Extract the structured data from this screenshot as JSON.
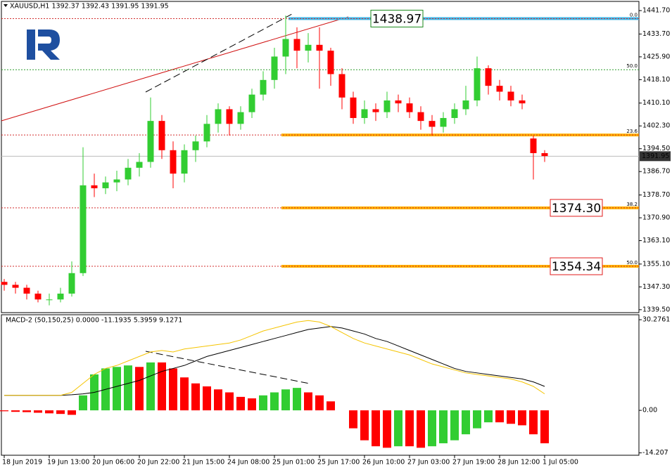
{
  "chart_data": [
    {
      "type": "candlestick",
      "title": "XAUUSD,H1  1392.37 1392.43 1391.95 1391.95",
      "categories": [
        "18 Jun 2019",
        null,
        null,
        null,
        "19 Jun 13:00",
        null,
        null,
        null,
        "20 Jun 06:00",
        null,
        null,
        null,
        "20 Jun 22:00",
        null,
        null,
        null,
        "21 Jun 15:00",
        null,
        null,
        null,
        "24 Jun 08:00",
        null,
        null,
        null,
        "25 Jun 01:00",
        null,
        null,
        null,
        "25 Jun 17:00",
        null,
        null,
        null,
        "26 Jun 10:00",
        null,
        null,
        null,
        "27 Jun 03:00",
        null,
        null,
        null,
        "27 Jun 19:00",
        null,
        null,
        null,
        "28 Jun 12:00",
        null,
        null,
        null,
        "1 Jul 05:00"
      ],
      "open": [
        1349,
        1348,
        1347,
        1345,
        1343,
        1343,
        1345,
        1352,
        1382,
        1381,
        1383,
        1384,
        1388,
        1390,
        1404,
        1394,
        1386,
        1394,
        1397,
        1403,
        1408,
        1403,
        1407,
        1413,
        1418,
        1426,
        1432,
        1428,
        1430,
        1428,
        1420,
        1412,
        1405,
        1408,
        1407,
        1411,
        1410,
        1407,
        1404,
        1402,
        1405,
        1408,
        1411,
        1422,
        1416,
        1414,
        1411,
        1398,
        1393
      ],
      "high": [
        1350,
        1349,
        1348,
        1346,
        1345,
        1347,
        1356,
        1395,
        1386,
        1385,
        1387,
        1391,
        1393,
        1412,
        1406,
        1397,
        1396,
        1399,
        1406,
        1410,
        1409,
        1409,
        1415,
        1421,
        1429,
        1440,
        1436,
        1434,
        1436,
        1429,
        1422,
        1414,
        1411,
        1410,
        1414,
        1413,
        1412,
        1409,
        1406,
        1407,
        1410,
        1416,
        1426,
        1423,
        1418,
        1416,
        1413,
        1399,
        1394
      ],
      "low": [
        1346,
        1345,
        1343,
        1342,
        1341,
        1342,
        1344,
        1351,
        1378,
        1379,
        1380,
        1382,
        1385,
        1388,
        1391,
        1381,
        1383,
        1390,
        1395,
        1400,
        1399,
        1401,
        1405,
        1411,
        1415,
        1420,
        1422,
        1424,
        1415,
        1416,
        1408,
        1403,
        1403,
        1404,
        1405,
        1407,
        1405,
        1401,
        1399,
        1400,
        1403,
        1406,
        1409,
        1413,
        1411,
        1409,
        1408,
        1384,
        1390
      ],
      "close": [
        1348,
        1347,
        1345,
        1343,
        1343,
        1345,
        1352,
        1382,
        1381,
        1383,
        1384,
        1388,
        1390,
        1404,
        1394,
        1386,
        1394,
        1397,
        1403,
        1408,
        1403,
        1407,
        1413,
        1418,
        1426,
        1432,
        1428,
        1430,
        1428,
        1420,
        1412,
        1405,
        1408,
        1407,
        1411,
        1410,
        1407,
        1404,
        1402,
        1405,
        1408,
        1411,
        1422,
        1416,
        1414,
        1411,
        1410,
        1393,
        1392
      ],
      "up_color": "#32cd32",
      "down_color": "#ff0000",
      "ylim": [
        1338.5,
        1444.6
      ],
      "yticks": [
        {
          "value": 1441.7,
          "label": "1441.70"
        },
        {
          "value": 1433.7,
          "label": "1433.70"
        },
        {
          "value": 1425.9,
          "label": "1425.90"
        },
        {
          "value": 1418.1,
          "label": "1418.10"
        },
        {
          "value": 1410.1,
          "label": "1410.10"
        },
        {
          "value": 1402.3,
          "label": "1402.30"
        },
        {
          "value": 1394.5,
          "label": "1394.50"
        },
        {
          "value": 1386.7,
          "label": "1386.70"
        },
        {
          "value": 1378.7,
          "label": "1378.70"
        },
        {
          "value": 1370.9,
          "label": "1370.90"
        },
        {
          "value": 1363.1,
          "label": "1363.10"
        },
        {
          "value": 1355.1,
          "label": "1355.10"
        },
        {
          "value": 1347.3,
          "label": "1347.30"
        },
        {
          "value": 1339.5,
          "label": "1339.50"
        }
      ],
      "last_price": 1391.95,
      "levels": [
        {
          "label": "0.0",
          "value": 1438.97,
          "color": "#d32f2f",
          "band": "#3fb6e8",
          "box": "1438.97",
          "box_color": "#1b8a1b"
        },
        {
          "label": "50.0",
          "value": 1421.5,
          "color": "#2e9e2e"
        },
        {
          "label": "23.6",
          "value": 1399.2,
          "color": "#d32f2f",
          "band": "#ffb300"
        },
        {
          "label": "38.2",
          "value": 1374.3,
          "color": "#d32f2f",
          "band": "#ffb300",
          "box": "1374.30",
          "box_color": "#e01b1b"
        },
        {
          "label": "50.0",
          "value": 1354.34,
          "color": "#d32f2f",
          "band": "#ffb300",
          "box": "1354.34",
          "box_color": "#e01b1b"
        }
      ]
    },
    {
      "type": "macd",
      "title": "MACD-2 (50,150,25) 0.0000 -11.1935 5.3959 9.1271",
      "values": [
        -0.3,
        -0.5,
        -0.6,
        -0.8,
        -1,
        -1.2,
        -1.5,
        5,
        12,
        14,
        14.5,
        15,
        14.5,
        16,
        16,
        14,
        11,
        9,
        8,
        7,
        6,
        4.5,
        4,
        5,
        6,
        7,
        7.5,
        6,
        5,
        3,
        0,
        -6,
        -10,
        -12,
        -12.5,
        -12,
        -12,
        -12.5,
        -12,
        -11,
        -10,
        -8,
        -6,
        -4,
        -4,
        -4.5,
        -5,
        -8,
        -11
      ],
      "up_color": "#32cd32",
      "down_color": "#ff0000",
      "series": [
        {
          "color": "#000000",
          "values": [
            5,
            5,
            5,
            5,
            5,
            5,
            5.2,
            5.5,
            6,
            7,
            8,
            9,
            10,
            11.5,
            13,
            14,
            15,
            16.5,
            18,
            19,
            20,
            21,
            22,
            23,
            24,
            25,
            26,
            27,
            27.5,
            28,
            27.5,
            26.5,
            25.5,
            24,
            23,
            21.5,
            20,
            18.5,
            17,
            15.5,
            14,
            13,
            12.5,
            12,
            11.5,
            11,
            10.5,
            9.5,
            8
          ]
        },
        {
          "color": "#f5c400",
          "values": [
            5,
            5,
            5,
            5,
            5,
            5,
            6,
            9,
            12,
            14,
            15,
            16.5,
            18,
            19.5,
            20,
            19.5,
            20.5,
            21,
            21.5,
            22,
            22.5,
            23.5,
            25,
            26.5,
            27.5,
            28.5,
            29.5,
            30,
            29.5,
            28,
            26,
            24,
            22.5,
            21.5,
            20.5,
            19.5,
            18.5,
            17,
            15.5,
            14.5,
            13.5,
            12.5,
            12,
            11.5,
            11,
            10.5,
            9.5,
            8,
            5.5
          ]
        }
      ],
      "ylim": [
        -15,
        31.7
      ],
      "yticks": [
        30.2761,
        {
          "value": 0,
          "label": "0.00"
        },
        -14.207
      ]
    }
  ]
}
